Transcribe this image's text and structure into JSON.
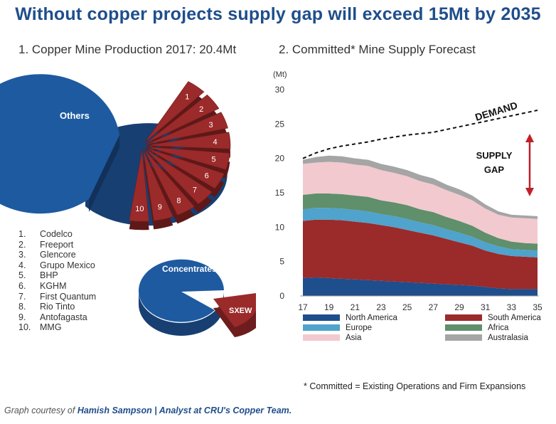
{
  "title": "Without copper projects supply gap will exceed 15Mt by 2035",
  "left_panel": {
    "subtitle": "1. Copper Mine Production 2017: 20.4Mt",
    "pie_labels": {
      "others": "Others",
      "concentrates": "Concentrates",
      "sxew": "SXEW"
    },
    "slice_numbers": [
      "1",
      "2",
      "3",
      "4",
      "5",
      "6",
      "7",
      "8",
      "9",
      "10"
    ],
    "companies": [
      {
        "num": "1.",
        "name": "Codelco"
      },
      {
        "num": "2.",
        "name": "Freeport"
      },
      {
        "num": "3.",
        "name": "Glencore"
      },
      {
        "num": "4.",
        "name": "Grupo Mexico"
      },
      {
        "num": "5.",
        "name": "BHP"
      },
      {
        "num": "6.",
        "name": "KGHM"
      },
      {
        "num": "7.",
        "name": "First Quantum"
      },
      {
        "num": "8.",
        "name": "Rio Tinto"
      },
      {
        "num": "9.",
        "name": "Antofagasta"
      },
      {
        "num": "10.",
        "name": "MMG"
      }
    ]
  },
  "colors": {
    "blue": "#1e5aa0",
    "red": "#9b2a2a"
  },
  "chart_data": {
    "type": "area",
    "title": "2. Committed* Mine Supply Forecast",
    "ylabel": "(Mt)",
    "ylim": [
      0,
      30
    ],
    "yticks": [
      0,
      5,
      10,
      15,
      20,
      25,
      30
    ],
    "xticks": [
      "17",
      "19",
      "21",
      "23",
      "25",
      "27",
      "29",
      "31",
      "33",
      "35"
    ],
    "x": [
      2017,
      2018,
      2019,
      2020,
      2021,
      2022,
      2023,
      2024,
      2025,
      2026,
      2027,
      2028,
      2029,
      2030,
      2031,
      2032,
      2033,
      2034,
      2035
    ],
    "series": [
      {
        "name": "North America",
        "color": "#1f4e8c",
        "values": [
          2.6,
          2.7,
          2.6,
          2.5,
          2.4,
          2.3,
          2.2,
          2.1,
          2.0,
          1.9,
          1.8,
          1.7,
          1.6,
          1.5,
          1.3,
          1.1,
          1.0,
          1.0,
          1.0
        ]
      },
      {
        "name": "South America",
        "color": "#9b2a2a",
        "values": [
          8.3,
          8.4,
          8.5,
          8.5,
          8.4,
          8.3,
          8.1,
          7.9,
          7.6,
          7.3,
          7.0,
          6.6,
          6.2,
          5.8,
          5.3,
          5.0,
          4.8,
          4.7,
          4.6
        ]
      },
      {
        "name": "Europe",
        "color": "#4fa3cc",
        "values": [
          1.7,
          1.7,
          1.7,
          1.7,
          1.7,
          1.7,
          1.6,
          1.6,
          1.6,
          1.5,
          1.5,
          1.4,
          1.4,
          1.3,
          1.2,
          1.1,
          1.0,
          1.0,
          1.0
        ]
      },
      {
        "name": "Africa",
        "color": "#5f8f6b",
        "values": [
          2.1,
          2.1,
          2.1,
          2.1,
          2.1,
          2.1,
          2.0,
          2.0,
          2.0,
          1.9,
          1.9,
          1.8,
          1.7,
          1.6,
          1.4,
          1.2,
          1.1,
          1.0,
          1.0
        ]
      },
      {
        "name": "Asia",
        "color": "#f2c9cf",
        "values": [
          4.5,
          4.5,
          4.6,
          4.6,
          4.5,
          4.5,
          4.4,
          4.3,
          4.2,
          4.1,
          4.0,
          3.9,
          3.8,
          3.7,
          3.5,
          3.4,
          3.5,
          3.6,
          3.6
        ]
      },
      {
        "name": "Australasia",
        "color": "#a5a5a5",
        "values": [
          0.6,
          0.8,
          0.9,
          0.9,
          0.9,
          0.9,
          0.9,
          0.9,
          0.9,
          0.9,
          0.9,
          0.8,
          0.8,
          0.7,
          0.6,
          0.5,
          0.4,
          0.4,
          0.4
        ]
      }
    ],
    "demand": {
      "label": "DEMAND",
      "values": [
        20.0,
        20.8,
        21.4,
        21.8,
        22.1,
        22.4,
        22.8,
        23.1,
        23.4,
        23.6,
        23.8,
        24.2,
        24.6,
        25.0,
        25.4,
        25.8,
        26.2,
        26.6,
        27.0
      ]
    },
    "annotation": {
      "line1": "SUPPLY",
      "line2": "GAP"
    },
    "legend_position": "bottom"
  },
  "footnote": "* Committed = Existing Operations and Firm Expansions",
  "credit": {
    "prefix": "Graph courtesy of ",
    "author": "Hamish Sampson | Analyst at CRU's Copper Team."
  }
}
